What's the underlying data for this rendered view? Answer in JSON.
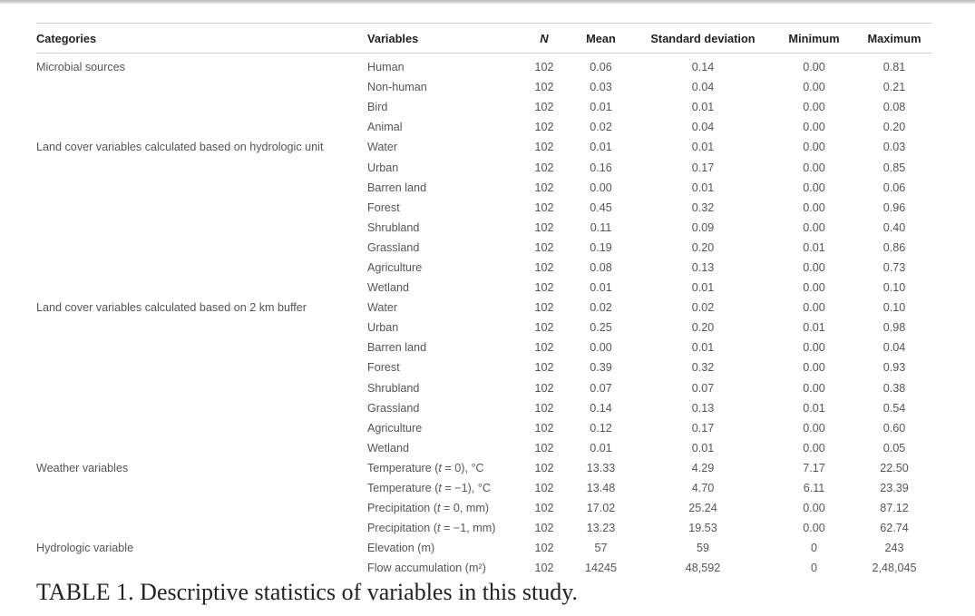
{
  "table": {
    "headers": [
      "Categories",
      "Variables",
      "N",
      "Mean",
      "Standard deviation",
      "Minimum",
      "Maximum"
    ],
    "rows": [
      [
        "Microbial sources",
        "Human",
        "102",
        "0.06",
        "0.14",
        "0.00",
        "0.81"
      ],
      [
        "",
        "Non-human",
        "102",
        "0.03",
        "0.04",
        "0.00",
        "0.21"
      ],
      [
        "",
        "Bird",
        "102",
        "0.01",
        "0.01",
        "0.00",
        "0.08"
      ],
      [
        "",
        "Animal",
        "102",
        "0.02",
        "0.04",
        "0.00",
        "0.20"
      ],
      [
        "Land cover variables calculated based on hydrologic unit",
        "Water",
        "102",
        "0.01",
        "0.01",
        "0.00",
        "0.03"
      ],
      [
        "",
        "Urban",
        "102",
        "0.16",
        "0.17",
        "0.00",
        "0.85"
      ],
      [
        "",
        "Barren land",
        "102",
        "0.00",
        "0.01",
        "0.00",
        "0.06"
      ],
      [
        "",
        "Forest",
        "102",
        "0.45",
        "0.32",
        "0.00",
        "0.96"
      ],
      [
        "",
        "Shrubland",
        "102",
        "0.11",
        "0.09",
        "0.00",
        "0.40"
      ],
      [
        "",
        "Grassland",
        "102",
        "0.19",
        "0.20",
        "0.01",
        "0.86"
      ],
      [
        "",
        "Agriculture",
        "102",
        "0.08",
        "0.13",
        "0.00",
        "0.73"
      ],
      [
        "",
        "Wetland",
        "102",
        "0.01",
        "0.01",
        "0.00",
        "0.10"
      ],
      [
        "Land cover variables calculated based on 2 km buffer",
        "Water",
        "102",
        "0.02",
        "0.02",
        "0.00",
        "0.10"
      ],
      [
        "",
        "Urban",
        "102",
        "0.25",
        "0.20",
        "0.01",
        "0.98"
      ],
      [
        "",
        "Barren land",
        "102",
        "0.00",
        "0.01",
        "0.00",
        "0.04"
      ],
      [
        "",
        "Forest",
        "102",
        "0.39",
        "0.32",
        "0.00",
        "0.93"
      ],
      [
        "",
        "Shrubland",
        "102",
        "0.07",
        "0.07",
        "0.00",
        "0.38"
      ],
      [
        "",
        "Grassland",
        "102",
        "0.14",
        "0.13",
        "0.01",
        "0.54"
      ],
      [
        "",
        "Agriculture",
        "102",
        "0.12",
        "0.17",
        "0.00",
        "0.60"
      ],
      [
        "",
        "Wetland",
        "102",
        "0.01",
        "0.01",
        "0.00",
        "0.05"
      ],
      [
        "Weather variables",
        "Temperature (t = 0), °C",
        "102",
        "13.33",
        "4.29",
        "7.17",
        "22.50"
      ],
      [
        "",
        "Temperature (t = −1), °C",
        "102",
        "13.48",
        "4.70",
        "6.11",
        "23.39"
      ],
      [
        "",
        "Precipitation (t = 0, mm)",
        "102",
        "17.02",
        "25.24",
        "0.00",
        "87.12"
      ],
      [
        "",
        "Precipitation (t = −1, mm)",
        "102",
        "13.23",
        "19.53",
        "0.00",
        "62.74"
      ],
      [
        "Hydrologic variable",
        "Elevation (m)",
        "102",
        "57",
        "59",
        "0",
        "243"
      ],
      [
        "",
        "Flow accumulation (m²)",
        "102",
        "14245",
        "48,592",
        "0",
        "2,48,045"
      ]
    ]
  },
  "caption": "TABLE 1. Descriptive statistics of variables in this study."
}
